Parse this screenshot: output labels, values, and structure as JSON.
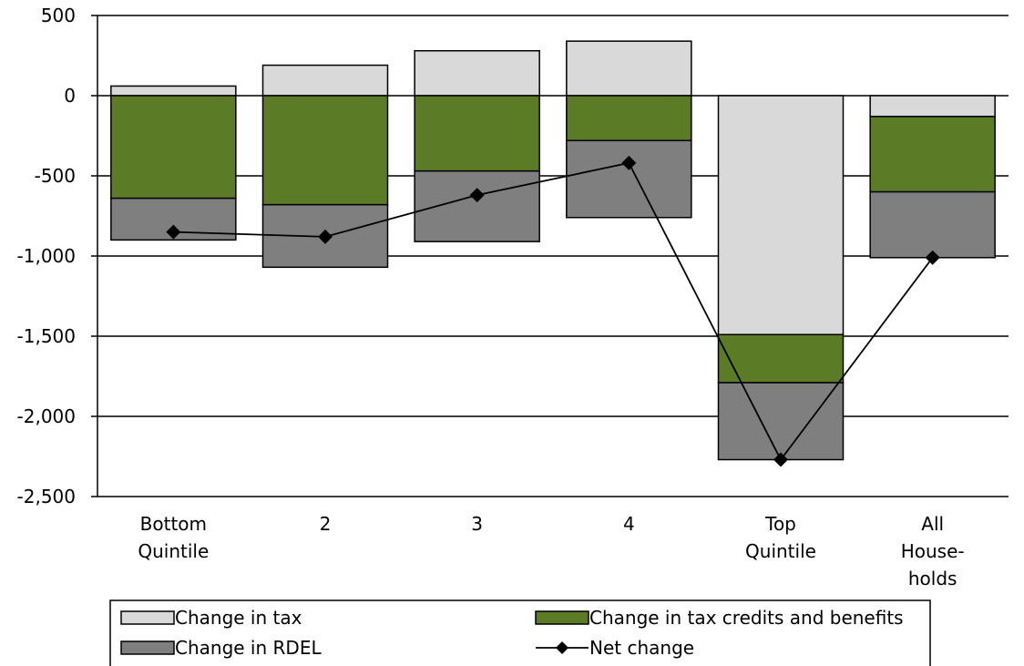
{
  "chart_data": {
    "type": "bar",
    "stacked": true,
    "categories": [
      [
        "Bottom",
        "Quintile"
      ],
      [
        "2"
      ],
      [
        "3"
      ],
      [
        "4"
      ],
      [
        "Top",
        "Quintile"
      ],
      [
        "All",
        "House-",
        "holds"
      ]
    ],
    "series": [
      {
        "name": "Change in tax",
        "kind": "bar",
        "color": "#d9d9d9",
        "values": [
          60,
          190,
          280,
          340,
          -1490,
          -130
        ]
      },
      {
        "name": "Change in tax credits and benefits",
        "kind": "bar",
        "color": "#5b7b27",
        "values": [
          -640,
          -680,
          -470,
          -280,
          -300,
          -470
        ]
      },
      {
        "name": "Change in RDEL",
        "kind": "bar",
        "color": "#7f7f7f",
        "values": [
          -260,
          -390,
          -440,
          -480,
          -480,
          -410
        ]
      },
      {
        "name": "Net change",
        "kind": "line",
        "color": "#000000",
        "values": [
          -850,
          -880,
          -620,
          -420,
          -2270,
          -1010
        ]
      }
    ],
    "yticks": [
      500,
      0,
      -500,
      -1000,
      -1500,
      -2000,
      -2500
    ],
    "ytick_labels": [
      "500",
      "0",
      "-500",
      "-1,000",
      "-1,500",
      "-2,000",
      "-2,500"
    ],
    "ylim": [
      -2500,
      500
    ],
    "grid": true,
    "legend_position": "bottom",
    "title": "",
    "xlabel": "",
    "ylabel": ""
  }
}
